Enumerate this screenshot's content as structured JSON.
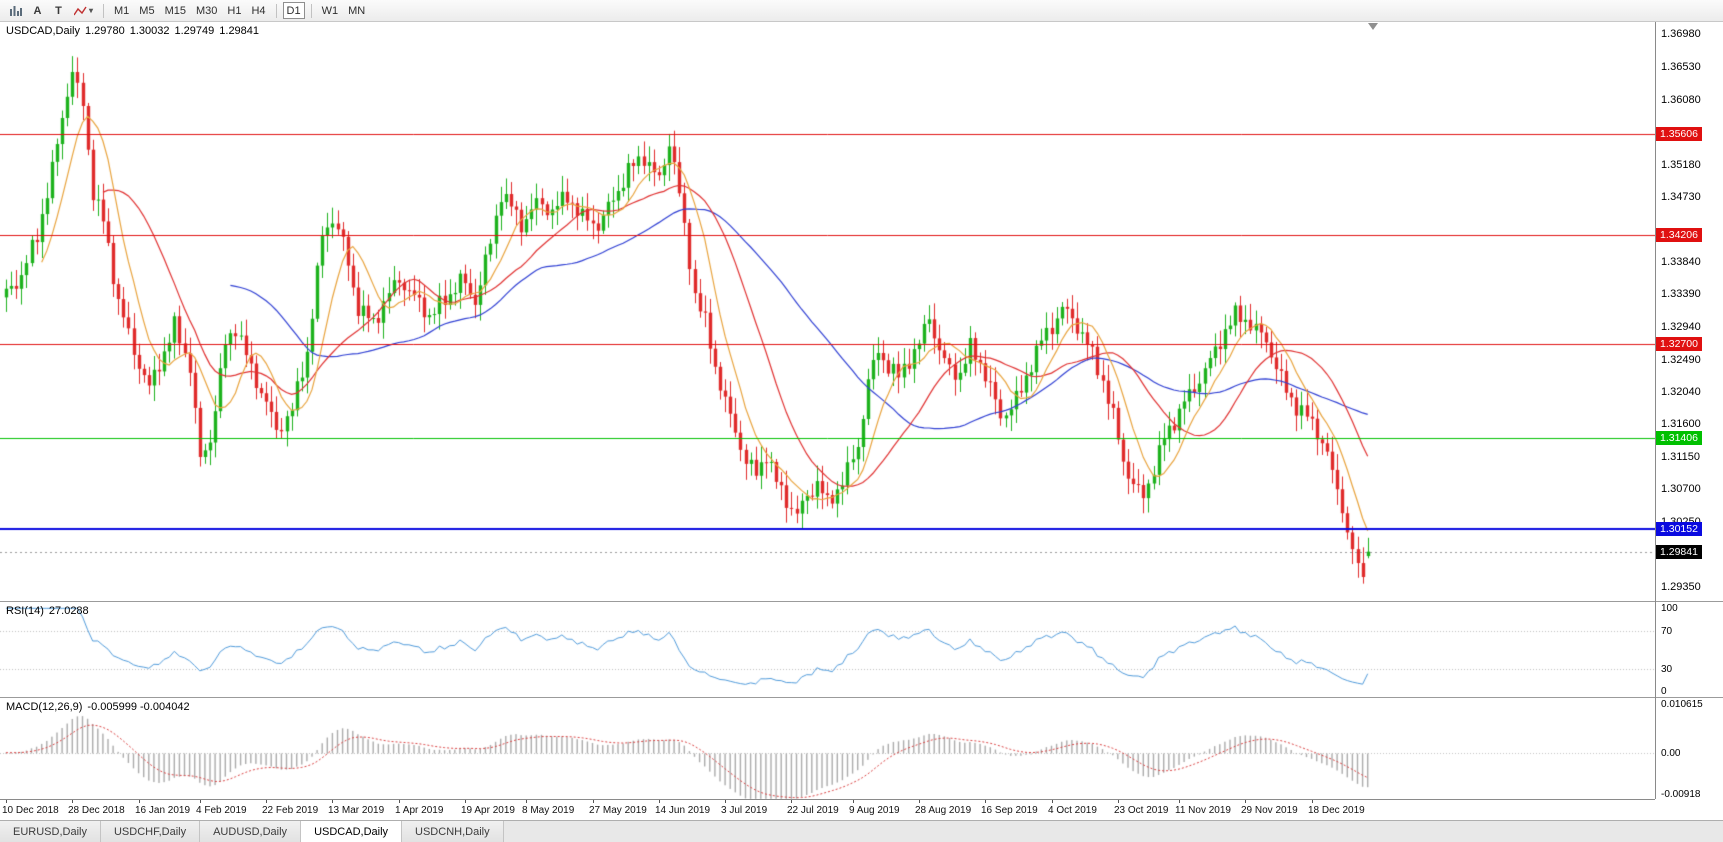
{
  "toolbar": {
    "text_tool": "A",
    "type_tool": "T",
    "timeframes": [
      "M1",
      "M5",
      "M15",
      "M30",
      "H1",
      "H4",
      "D1",
      "W1",
      "MN"
    ],
    "active_timeframe": "D1"
  },
  "chart": {
    "ohlc_label": {
      "symbol": "USDCAD,Daily",
      "open": "1.29780",
      "high": "1.30032",
      "low": "1.29749",
      "close": "1.29841"
    },
    "price_axis": {
      "ticks": [
        "1.36980",
        "1.36530",
        "1.36080",
        "1.35180",
        "1.34730",
        "1.33840",
        "1.33390",
        "1.32940",
        "1.32490",
        "1.32040",
        "1.31600",
        "1.31150",
        "1.30700",
        "1.30250",
        "1.29350"
      ]
    },
    "levels": [
      {
        "price": 1.35606,
        "label": "1.35606",
        "color": "#e01010",
        "line_width": 1,
        "kind": "resistance-1"
      },
      {
        "price": 1.34206,
        "label": "1.34206",
        "color": "#e01010",
        "line_width": 1,
        "kind": "resistance-2"
      },
      {
        "price": 1.327,
        "label": "1.32700",
        "color": "#e01010",
        "line_width": 1,
        "kind": "resistance-3"
      },
      {
        "price": 1.31406,
        "label": "1.31406",
        "color": "#00c000",
        "line_width": 1,
        "kind": "support-green"
      },
      {
        "price": 1.30152,
        "label": "1.30152",
        "color": "#0a0ae0",
        "line_width": 2,
        "kind": "support-blue"
      }
    ],
    "current_price": {
      "value": 1.29841,
      "label": "1.29841",
      "tag_color": "#000000"
    }
  },
  "rsi": {
    "name": "RSI(14)",
    "value": "27.0288",
    "axis": [
      "100",
      "70",
      "30",
      "0"
    ]
  },
  "macd": {
    "name": "MACD(12,26,9)",
    "values": "-0.005999 -0.004042",
    "axis": [
      {
        "text": "0.010615",
        "value": 0.010615
      },
      {
        "text": "0.00",
        "value": 0
      },
      {
        "text": "-0.00918",
        "value": -0.00918
      }
    ]
  },
  "time_axis": {
    "labels": [
      {
        "text": "10 Dec 2018",
        "index": 0
      },
      {
        "text": "28 Dec 2018",
        "index": 13
      },
      {
        "text": "16 Jan 2019",
        "index": 26
      },
      {
        "text": "4 Feb 2019",
        "index": 38
      },
      {
        "text": "22 Feb 2019",
        "index": 51
      },
      {
        "text": "13 Mar 2019",
        "index": 64
      },
      {
        "text": "1 Apr 2019",
        "index": 77
      },
      {
        "text": "19 Apr 2019",
        "index": 90
      },
      {
        "text": "8 May 2019",
        "index": 102
      },
      {
        "text": "27 May 2019",
        "index": 115
      },
      {
        "text": "14 Jun 2019",
        "index": 128
      },
      {
        "text": "3 Jul 2019",
        "index": 141
      },
      {
        "text": "22 Jul 2019",
        "index": 154
      },
      {
        "text": "9 Aug 2019",
        "index": 166
      },
      {
        "text": "28 Aug 2019",
        "index": 179
      },
      {
        "text": "16 Sep 2019",
        "index": 192
      },
      {
        "text": "4 Oct 2019",
        "index": 205
      },
      {
        "text": "23 Oct 2019",
        "index": 218
      },
      {
        "text": "11 Nov 2019",
        "index": 230
      },
      {
        "text": "29 Nov 2019",
        "index": 243
      },
      {
        "text": "18 Dec 2019",
        "index": 256
      }
    ]
  },
  "tabs": [
    {
      "label": "EURUSD,Daily",
      "active": false
    },
    {
      "label": "USDCHF,Daily",
      "active": false
    },
    {
      "label": "AUDUSD,Daily",
      "active": false
    },
    {
      "label": "USDCAD,Daily",
      "active": true
    },
    {
      "label": "USDCNH,Daily",
      "active": false
    }
  ],
  "chart_data": {
    "type": "candlestick",
    "symbol": "USDCAD",
    "timeframe": "Daily",
    "candle_count": 268,
    "price_range": {
      "min": 1.2916,
      "max": 1.3715
    },
    "last_candle": {
      "open": 1.2978,
      "high": 1.30032,
      "low": 1.29749,
      "close": 1.29841
    },
    "close_anchors": [
      [
        0,
        1.334
      ],
      [
        3,
        1.3365
      ],
      [
        6,
        1.342
      ],
      [
        9,
        1.351
      ],
      [
        12,
        1.362
      ],
      [
        13,
        1.3645
      ],
      [
        15,
        1.36
      ],
      [
        17,
        1.348
      ],
      [
        19,
        1.344
      ],
      [
        22,
        1.333
      ],
      [
        25,
        1.326
      ],
      [
        28,
        1.321
      ],
      [
        31,
        1.326
      ],
      [
        33,
        1.3295
      ],
      [
        36,
        1.324
      ],
      [
        38,
        1.311
      ],
      [
        40,
        1.314
      ],
      [
        43,
        1.327
      ],
      [
        45,
        1.3295
      ],
      [
        48,
        1.3235
      ],
      [
        51,
        1.319
      ],
      [
        53,
        1.315
      ],
      [
        56,
        1.318
      ],
      [
        59,
        1.326
      ],
      [
        62,
        1.342
      ],
      [
        64,
        1.3445
      ],
      [
        66,
        1.341
      ],
      [
        69,
        1.332
      ],
      [
        72,
        1.33
      ],
      [
        75,
        1.334
      ],
      [
        77,
        1.336
      ],
      [
        80,
        1.3335
      ],
      [
        83,
        1.331
      ],
      [
        86,
        1.333
      ],
      [
        89,
        1.336
      ],
      [
        92,
        1.333
      ],
      [
        95,
        1.341
      ],
      [
        97,
        1.348
      ],
      [
        99,
        1.346
      ],
      [
        101,
        1.3435
      ],
      [
        104,
        1.3465
      ],
      [
        107,
        1.3455
      ],
      [
        110,
        1.3475
      ],
      [
        113,
        1.3445
      ],
      [
        116,
        1.3435
      ],
      [
        119,
        1.347
      ],
      [
        122,
        1.351
      ],
      [
        125,
        1.353
      ],
      [
        128,
        1.3495
      ],
      [
        130,
        1.355
      ],
      [
        131,
        1.352
      ],
      [
        133,
        1.343
      ],
      [
        135,
        1.334
      ],
      [
        137,
        1.33
      ],
      [
        139,
        1.324
      ],
      [
        141,
        1.319
      ],
      [
        143,
        1.315
      ],
      [
        145,
        1.311
      ],
      [
        147,
        1.309
      ],
      [
        149,
        1.312
      ],
      [
        151,
        1.308
      ],
      [
        153,
        1.3055
      ],
      [
        155,
        1.3035
      ],
      [
        157,
        1.306
      ],
      [
        159,
        1.308
      ],
      [
        161,
        1.305
      ],
      [
        163,
        1.307
      ],
      [
        165,
        1.3095
      ],
      [
        167,
        1.313
      ],
      [
        169,
        1.322
      ],
      [
        171,
        1.326
      ],
      [
        173,
        1.324
      ],
      [
        175,
        1.3225
      ],
      [
        177,
        1.325
      ],
      [
        179,
        1.327
      ],
      [
        181,
        1.331
      ],
      [
        183,
        1.326
      ],
      [
        185,
        1.3235
      ],
      [
        187,
        1.323
      ],
      [
        189,
        1.3265
      ],
      [
        191,
        1.3245
      ],
      [
        193,
        1.321
      ],
      [
        195,
        1.317
      ],
      [
        197,
        1.3185
      ],
      [
        199,
        1.3205
      ],
      [
        201,
        1.3245
      ],
      [
        203,
        1.3275
      ],
      [
        205,
        1.3295
      ],
      [
        207,
        1.332
      ],
      [
        209,
        1.3305
      ],
      [
        211,
        1.3285
      ],
      [
        213,
        1.3255
      ],
      [
        215,
        1.322
      ],
      [
        217,
        1.317
      ],
      [
        219,
        1.311
      ],
      [
        221,
        1.3075
      ],
      [
        223,
        1.306
      ],
      [
        225,
        1.31
      ],
      [
        227,
        1.314
      ],
      [
        229,
        1.3165
      ],
      [
        231,
        1.319
      ],
      [
        233,
        1.321
      ],
      [
        235,
        1.3235
      ],
      [
        237,
        1.326
      ],
      [
        239,
        1.329
      ],
      [
        241,
        1.331
      ],
      [
        243,
        1.3305
      ],
      [
        245,
        1.329
      ],
      [
        247,
        1.3275
      ],
      [
        249,
        1.324
      ],
      [
        251,
        1.3205
      ],
      [
        253,
        1.3185
      ],
      [
        255,
        1.317
      ],
      [
        257,
        1.315
      ],
      [
        259,
        1.312
      ],
      [
        261,
        1.307
      ],
      [
        263,
        1.301
      ],
      [
        265,
        1.2965
      ],
      [
        266,
        1.2952
      ],
      [
        267,
        1.29841
      ]
    ],
    "moving_averages": [
      {
        "period": 8,
        "color": "#e8a33d"
      },
      {
        "period": 20,
        "color": "#e03131"
      },
      {
        "period": 45,
        "color": "#2f3fd3"
      }
    ],
    "indicators": {
      "rsi": {
        "period": 14,
        "current": 27.0288,
        "levels": [
          70,
          30
        ]
      },
      "macd": {
        "fast": 12,
        "slow": 26,
        "signal": 9,
        "main": -0.005999,
        "signal_value": -0.004042,
        "scale_max": 0.010615,
        "scale_min": -0.00918
      }
    },
    "colors": {
      "bull": "#1db21d",
      "bear": "#e02b2b",
      "rsi": "#4f9ada",
      "macd_histogram": "#ababab",
      "macd_signal": "#d94040"
    }
  }
}
